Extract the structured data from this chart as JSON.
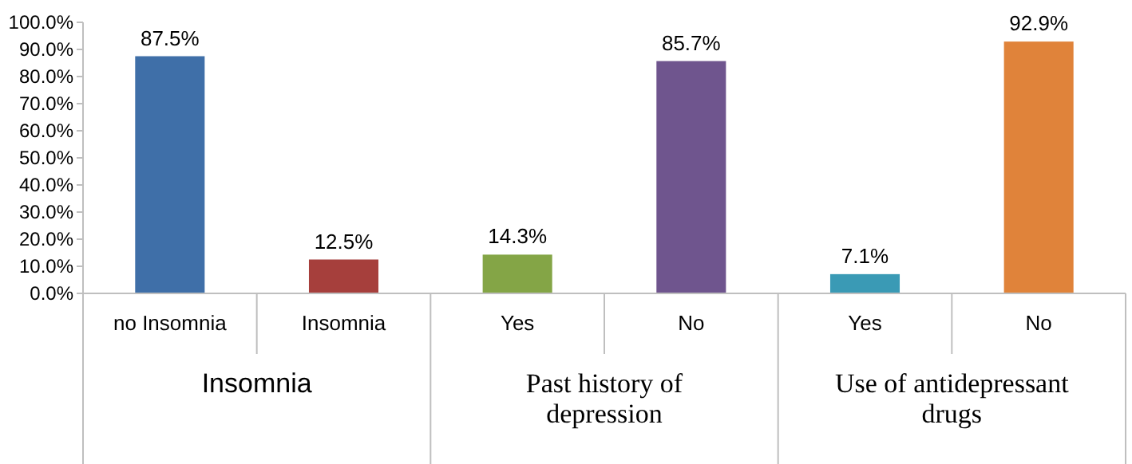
{
  "chart_data": {
    "type": "bar",
    "categories": [
      "no Insomnia",
      "Insomnia",
      "Yes",
      "No",
      "Yes",
      "No"
    ],
    "values": [
      87.5,
      12.5,
      14.3,
      85.7,
      7.1,
      92.9
    ],
    "colors": [
      "#3f6fa8",
      "#a63f3c",
      "#84a546",
      "#6f558e",
      "#3a9ab5",
      "#e0833a"
    ],
    "value_labels": [
      "87.5%",
      "12.5%",
      "14.3%",
      "85.7%",
      "7.1%",
      "92.9%"
    ],
    "ylim": [
      0,
      100
    ],
    "yticks": [
      {
        "value": 0,
        "label": "0.0%"
      },
      {
        "value": 10,
        "label": "10.0%"
      },
      {
        "value": 20,
        "label": "20.0%"
      },
      {
        "value": 30,
        "label": "30.0%"
      },
      {
        "value": 40,
        "label": "40.0%"
      },
      {
        "value": 50,
        "label": "50.0%"
      },
      {
        "value": 60,
        "label": "60.0%"
      },
      {
        "value": 70,
        "label": "70.0%"
      },
      {
        "value": 80,
        "label": "80.0%"
      },
      {
        "value": 90,
        "label": "90.0%"
      },
      {
        "value": 100,
        "label": "100.0%"
      }
    ],
    "annotations": [
      "Insomnia",
      "Past history of depression",
      "Use of antidepressant drugs"
    ],
    "grid": false
  }
}
